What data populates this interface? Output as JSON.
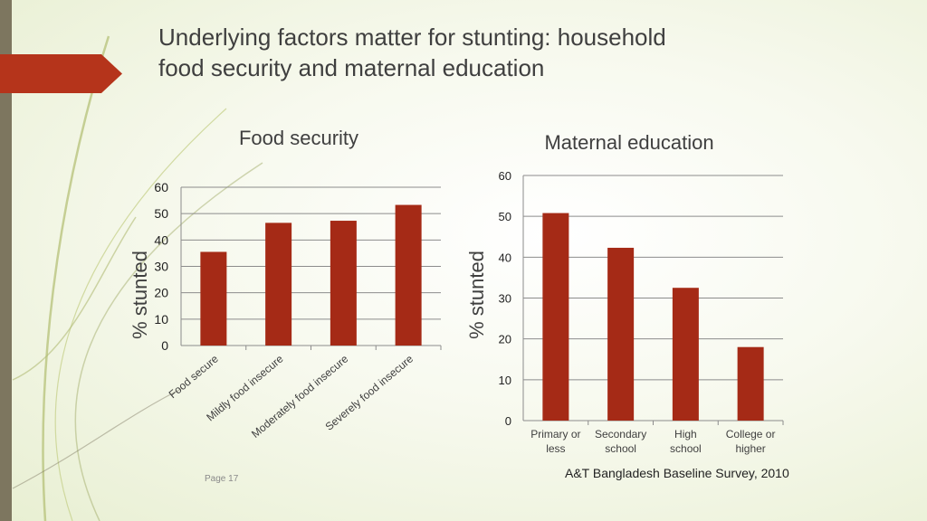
{
  "slide": {
    "title_line1": "Underlying factors matter for stunting:  household",
    "title_line2": "food security and maternal education",
    "page_label": "Page 17",
    "source": "A&T Bangladesh Baseline Survey, 2010"
  },
  "colors": {
    "bar": "#a52a16",
    "accent": "#b5341b",
    "left_bar": "#7d765f",
    "grid": "#8c8c8c",
    "text": "#3f3f3f"
  },
  "chart_data": [
    {
      "type": "bar",
      "title": "Food security",
      "ylabel": "% stunted",
      "xlabel": "",
      "categories": [
        "Food secure",
        "Mildly food insecure",
        "Moderately food insecure",
        "Severely food insecure"
      ],
      "values": [
        35.5,
        46.5,
        47.3,
        53.3
      ],
      "ylim": [
        0,
        60
      ],
      "yticks": [
        0,
        10,
        20,
        30,
        40,
        50,
        60
      ],
      "grid": true,
      "legend": "none"
    },
    {
      "type": "bar",
      "title": "Maternal education",
      "ylabel": "% stunted",
      "xlabel": "",
      "categories": [
        "Primary or less",
        "Secondary school",
        "High school",
        "College or higher"
      ],
      "values": [
        50.8,
        42.3,
        32.5,
        18.0
      ],
      "ylim": [
        0,
        60
      ],
      "yticks": [
        0,
        10,
        20,
        30,
        40,
        50,
        60
      ],
      "grid": true,
      "legend": "none"
    }
  ]
}
